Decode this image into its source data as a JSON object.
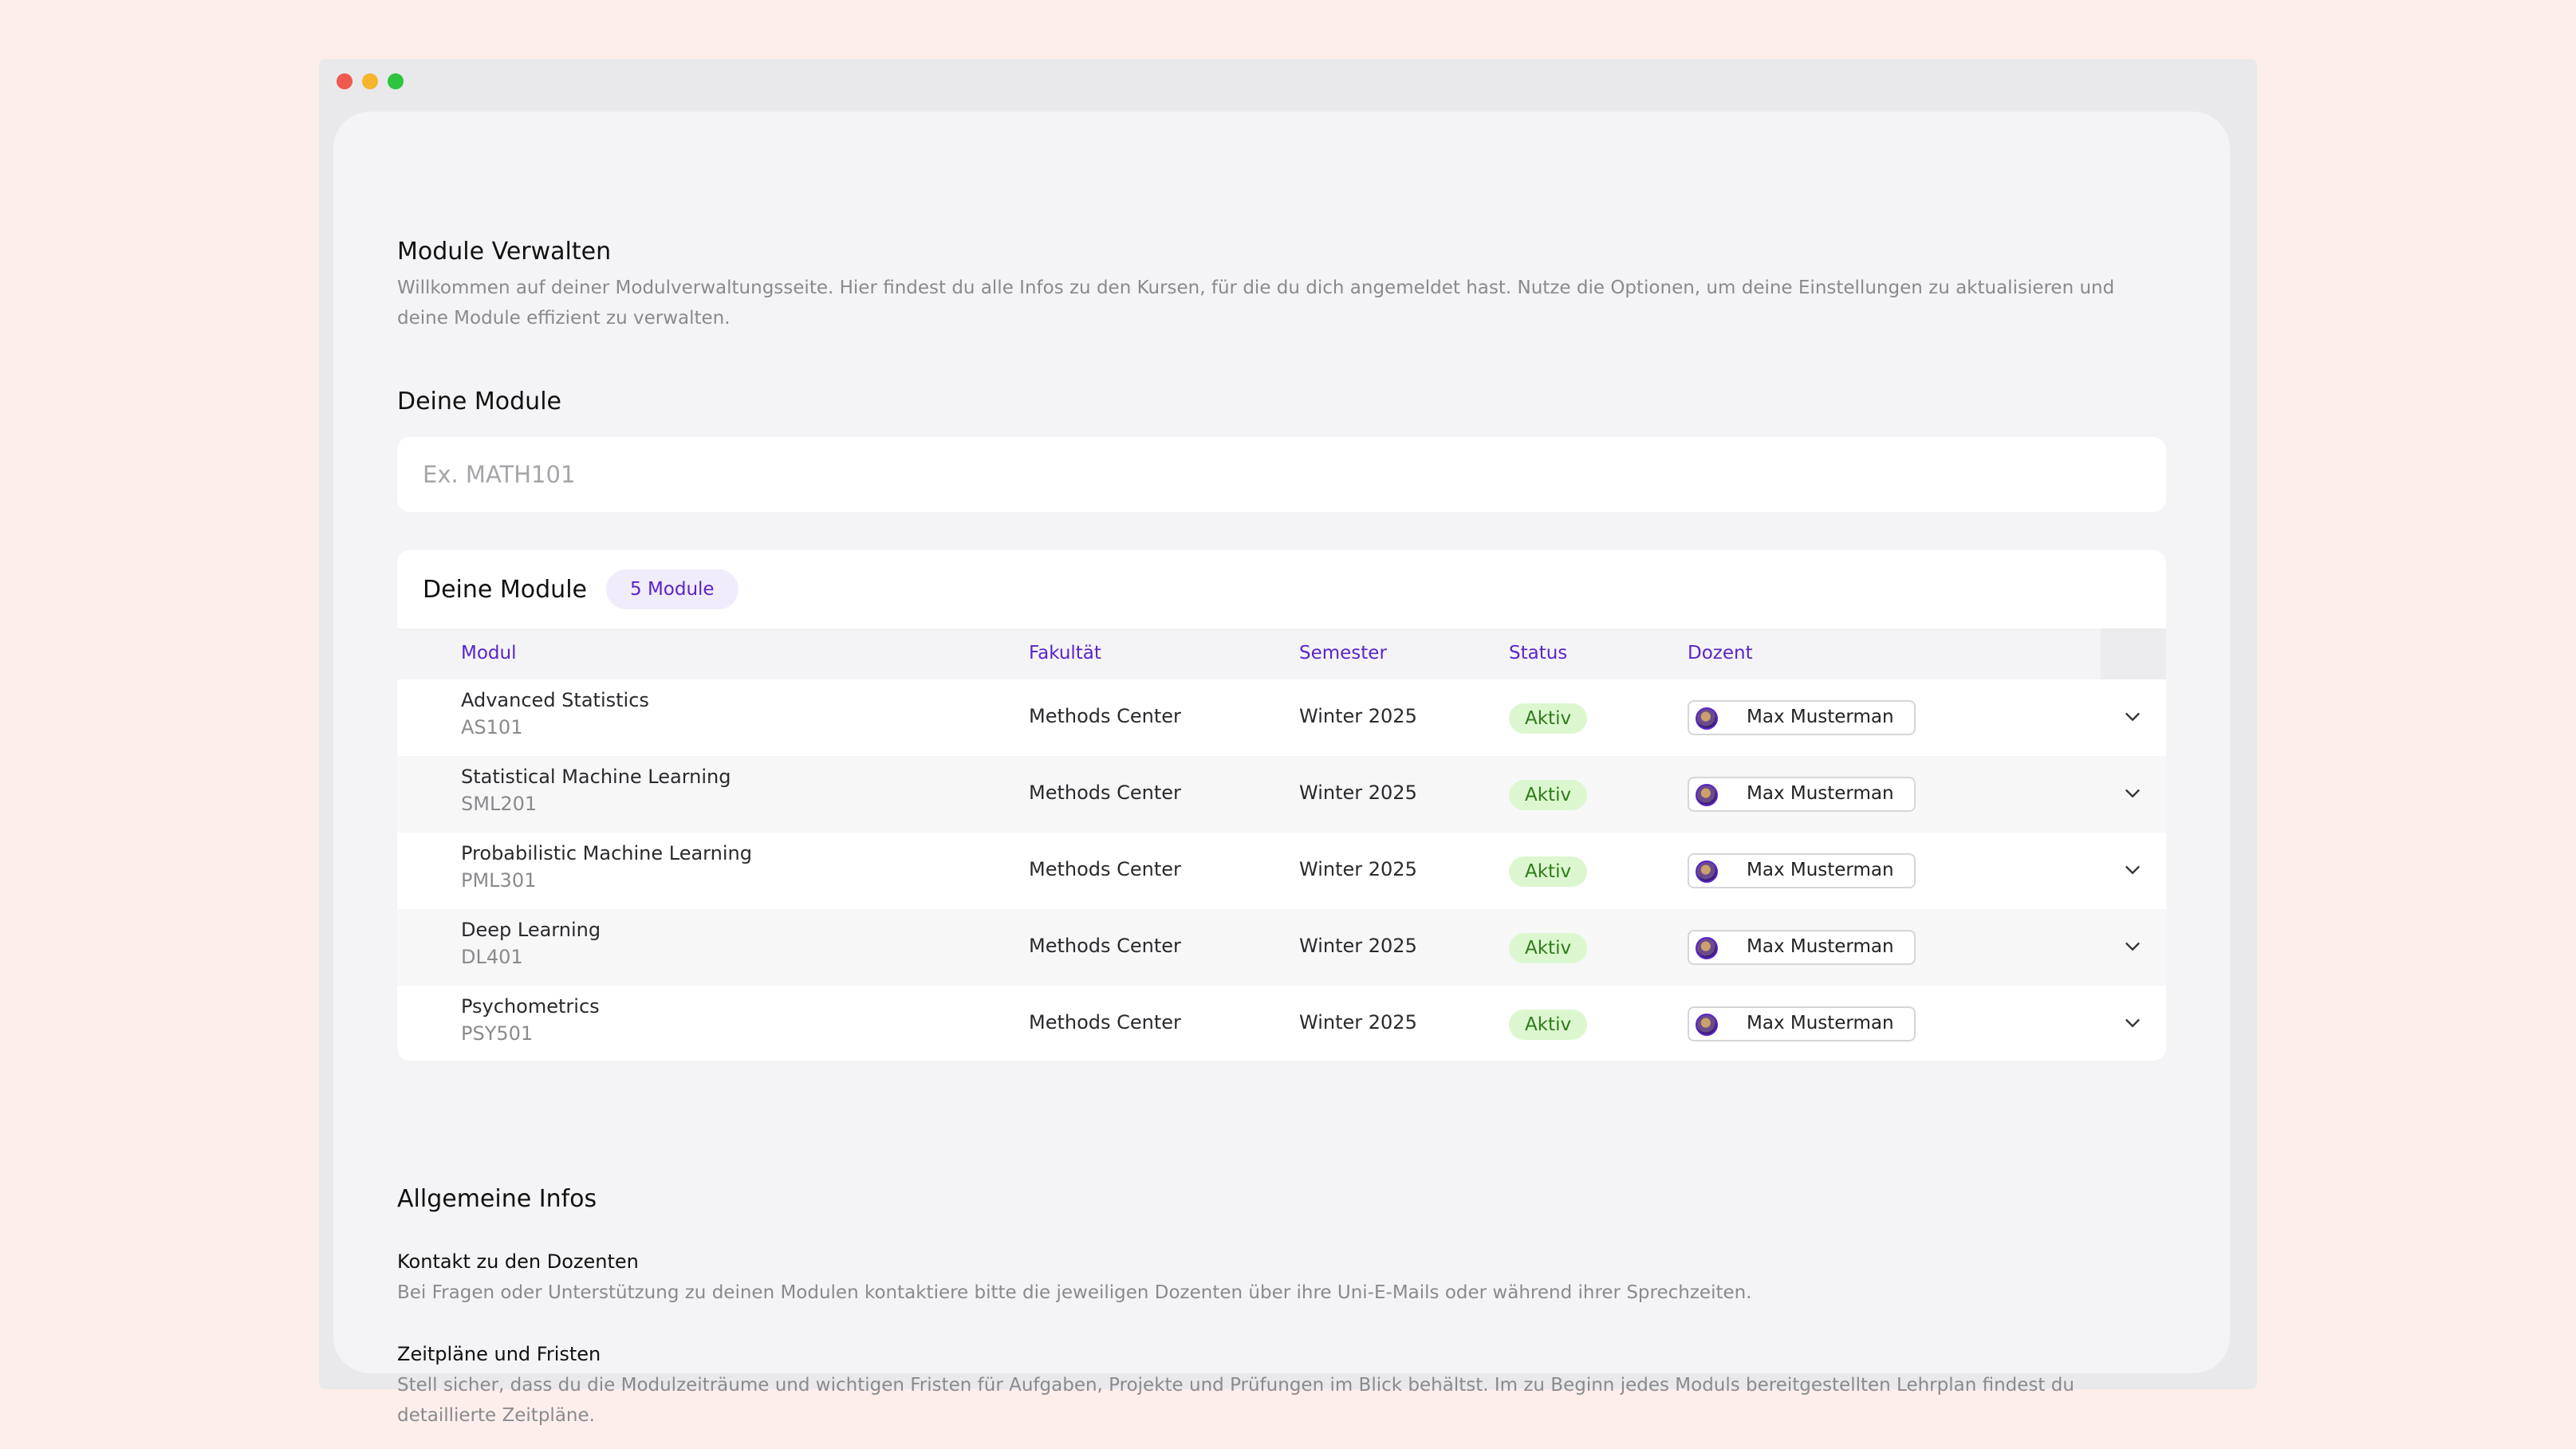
{
  "page": {
    "title": "Module Verwalten",
    "description": "Willkommen auf deiner Modulverwaltungsseite. Hier findest du alle Infos zu den Kursen, für die du dich angemeldet hast. Nutze die Optionen, um deine Einstellungen zu aktualisieren und deine Module effizient zu verwalten.",
    "section_title": "Deine Module"
  },
  "search": {
    "placeholder": "Ex. MATH101",
    "value": ""
  },
  "modules_card": {
    "title": "Deine Module",
    "count_badge": "5 Module",
    "columns": {
      "module": "Modul",
      "faculty": "Fakultät",
      "semester": "Semester",
      "status": "Status",
      "lecturer": "Dozent"
    },
    "rows": [
      {
        "name": "Advanced Statistics",
        "code": "AS101",
        "faculty": "Methods Center",
        "semester": "Winter 2025",
        "status": "Aktiv",
        "lecturer": "Max Musterman"
      },
      {
        "name": "Statistical Machine Learning",
        "code": "SML201",
        "faculty": "Methods Center",
        "semester": "Winter 2025",
        "status": "Aktiv",
        "lecturer": "Max Musterman"
      },
      {
        "name": "Probabilistic Machine Learning",
        "code": "PML301",
        "faculty": "Methods Center",
        "semester": "Winter 2025",
        "status": "Aktiv",
        "lecturer": "Max Musterman"
      },
      {
        "name": "Deep Learning",
        "code": "DL401",
        "faculty": "Methods Center",
        "semester": "Winter 2025",
        "status": "Aktiv",
        "lecturer": "Max Musterman"
      },
      {
        "name": "Psychometrics",
        "code": "PSY501",
        "faculty": "Methods Center",
        "semester": "Winter 2025",
        "status": "Aktiv",
        "lecturer": "Max Musterman"
      }
    ]
  },
  "general_info": {
    "title": "Allgemeine Infos",
    "items": [
      {
        "title": "Kontakt zu den Dozenten",
        "text": "Bei Fragen oder Unterstützung zu deinen Modulen kontaktiere bitte die jeweiligen Dozenten über ihre Uni-E-Mails oder während ihrer Sprechzeiten."
      },
      {
        "title": "Zeitpläne und Fristen",
        "text": "Stell sicher, dass du die Modulzeiträume und wichtigen Fristen für Aufgaben, Projekte und Prüfungen im Blick behältst. Im zu Beginn jedes Moduls bereitgestellten Lehrplan findest du detaillierte Zeitpläne."
      }
    ]
  },
  "colors": {
    "accent": "#5a24c7",
    "status_bg": "#dcf7cf",
    "status_text": "#2e7a1a",
    "background": "#fdeeec"
  }
}
